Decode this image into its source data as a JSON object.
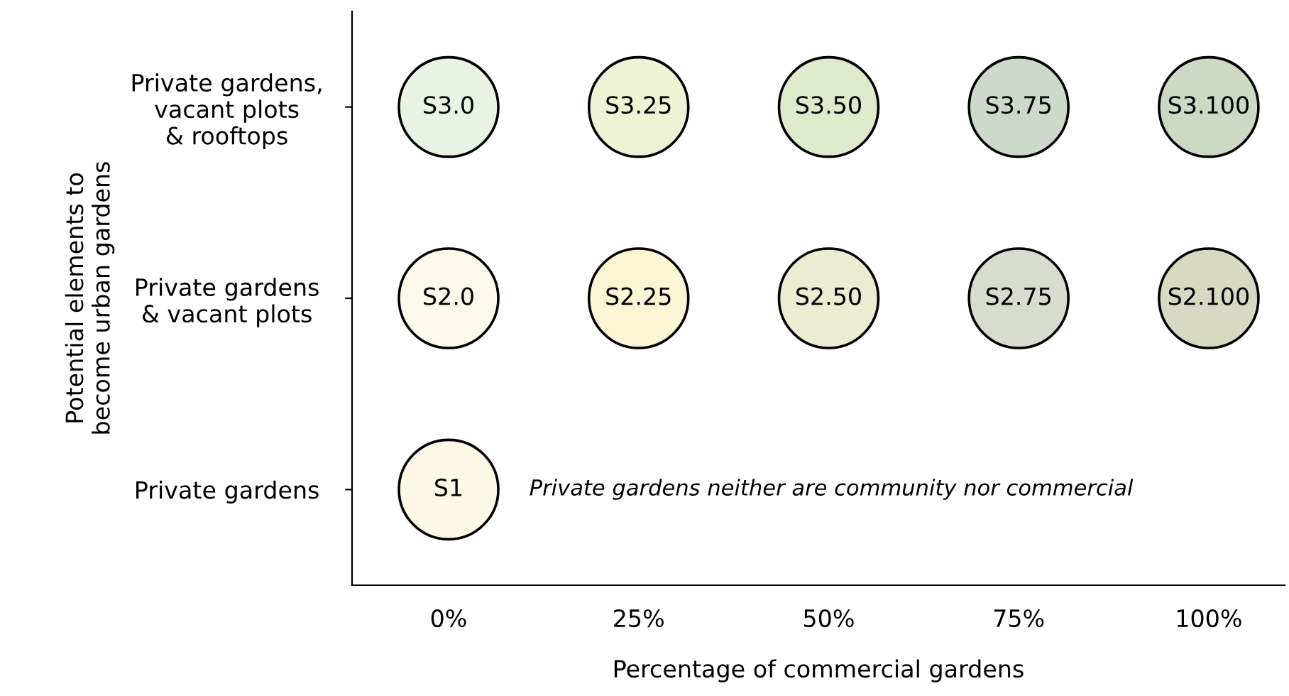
{
  "chart_data": {
    "type": "scatter",
    "orientation": "horizontal",
    "xlabel": "Percentage of commercial gardens",
    "ylabel": "Potential elements to\nbecome urban gardens",
    "categories": [
      "Private gardens,\nvacant plots\n& rooftops",
      "Private gardens\n& vacant plots",
      "Private gardens"
    ],
    "xlim": [
      -12.7,
      110
    ],
    "xticks": [
      {
        "value": 0,
        "label": "0%"
      },
      {
        "value": 25,
        "label": "25%"
      },
      {
        "value": 50,
        "label": "50%"
      },
      {
        "value": 75,
        "label": "75%"
      },
      {
        "value": 100,
        "label": "100%"
      }
    ],
    "marker": "circle",
    "grid": false,
    "legend": false,
    "series": [
      {
        "values": [
          0,
          0,
          0
        ],
        "colors": [
          "#eaf3e3",
          "#fdf9ea",
          "#fdf7e6"
        ],
        "value_labels": [
          "S3.0",
          "S2.0",
          "S1"
        ]
      },
      {
        "values": [
          25,
          25,
          null
        ],
        "colors": [
          "#eef3d5",
          "#faf6d3",
          null
        ],
        "value_labels": [
          "S3.25",
          "S2.25",
          null
        ]
      },
      {
        "values": [
          50,
          50,
          null
        ],
        "colors": [
          "#dfe9cc",
          "#ececd3",
          null
        ],
        "value_labels": [
          "S3.50",
          "S2.50",
          null
        ]
      },
      {
        "values": [
          75,
          75,
          null
        ],
        "colors": [
          "#cfd8cc",
          "#d8dbd0",
          null
        ],
        "value_labels": [
          "S3.75",
          "S2.75",
          null
        ]
      },
      {
        "values": [
          100,
          100,
          null
        ],
        "colors": [
          "#cdd9c3",
          "#d8d9c3",
          null
        ],
        "value_labels": [
          "S3.100",
          "S2.100",
          null
        ]
      }
    ],
    "annotations": [
      "Private gardens neither are community nor commercial"
    ]
  }
}
